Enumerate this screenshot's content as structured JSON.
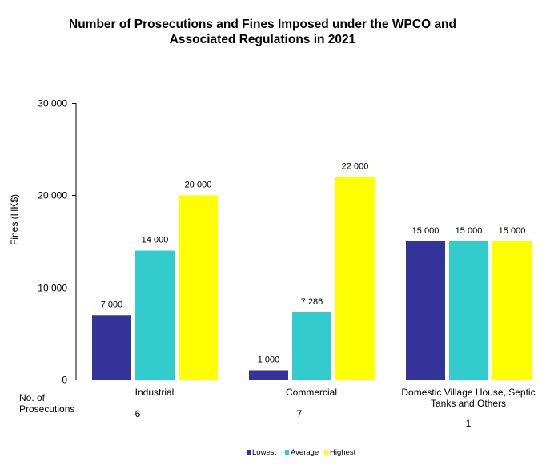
{
  "title_lines": [
    "Number of Prosecutions and Fines Imposed under the WPCO and",
    "Associated Regulations in 2021"
  ],
  "prosecutions_label_lines": [
    "No. of",
    "Prosecutions"
  ],
  "chart_data": {
    "type": "bar",
    "title": "Number of Prosecutions and Fines Imposed under the WPCO and Associated Regulations in 2021",
    "xlabel": "",
    "ylabel": "Fines (HK$)",
    "ylim": [
      0,
      30000
    ],
    "yticks": [
      0,
      10000,
      20000,
      30000
    ],
    "ytick_labels": [
      "0",
      "10 000",
      "20 000",
      "30 000"
    ],
    "grid": false,
    "legend_position": "bottom-center",
    "categories": [
      "Industrial",
      "Commercial",
      "Domestic Village House, Septic Tanks and Others"
    ],
    "category_label_lines": [
      [
        "Industrial"
      ],
      [
        "Commercial"
      ],
      [
        "Domestic Village House, Septic",
        "Tanks and Others"
      ]
    ],
    "prosecutions": [
      6,
      7,
      1
    ],
    "series": [
      {
        "name": "Lowest",
        "color": "#333399",
        "values": [
          7000,
          1000,
          15000
        ],
        "labels": [
          "7 000",
          "1 000",
          "15 000"
        ]
      },
      {
        "name": "Average",
        "color": "#33CCCC",
        "values": [
          14000,
          7286,
          15000
        ],
        "labels": [
          "14 000",
          "7 286",
          "15 000"
        ]
      },
      {
        "name": "Highest",
        "color": "#FFFF00",
        "values": [
          20000,
          22000,
          15000
        ],
        "labels": [
          "20 000",
          "22 000",
          "15 000"
        ]
      }
    ]
  }
}
